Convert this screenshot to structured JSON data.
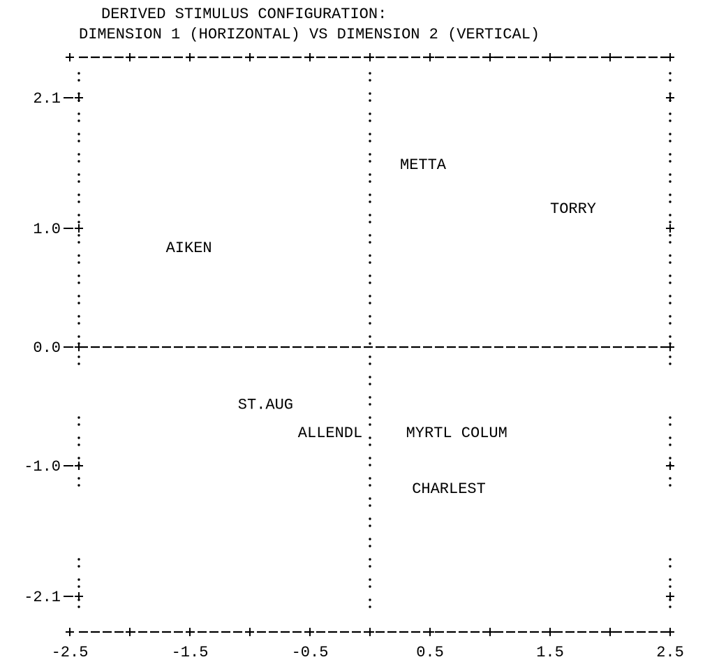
{
  "chart_data": {
    "type": "scatter",
    "title": "DERIVED STIMULUS CONFIGURATION:",
    "subtitle": "DIMENSION 1 (HORIZONTAL) VS DIMENSION 2 (VERTICAL)",
    "xlabel": "",
    "ylabel": "",
    "xlim": [
      -2.5,
      2.5
    ],
    "ylim": [
      -2.4,
      2.4
    ],
    "x_ticks": [
      -2.5,
      -1.5,
      -0.5,
      0.5,
      1.5,
      2.5
    ],
    "x_tick_labels": [
      "-2.5",
      "-1.5",
      "-0.5",
      "0.5",
      "1.5",
      "2.5"
    ],
    "y_ticks": [
      2.1,
      1.0,
      0.0,
      -1.0,
      -2.1
    ],
    "y_tick_labels": [
      "2.1",
      "1.0",
      "0.0",
      "-1.0",
      "-2.1"
    ],
    "grid": false,
    "points": [
      {
        "label": "METTA",
        "x": 0.25,
        "y": 1.5
      },
      {
        "label": "TORRY",
        "x": 1.5,
        "y": 1.13
      },
      {
        "label": "AIKEN",
        "x": -1.7,
        "y": 0.8
      },
      {
        "label": "ST.AUG",
        "x": -1.1,
        "y": -0.52
      },
      {
        "label": "ALLENDL",
        "x": -0.6,
        "y": -0.76
      },
      {
        "label": "MYRTL COLUM",
        "x": 0.3,
        "y": -0.76
      },
      {
        "label": "CHARLEST",
        "x": 0.35,
        "y": -1.23
      }
    ]
  }
}
